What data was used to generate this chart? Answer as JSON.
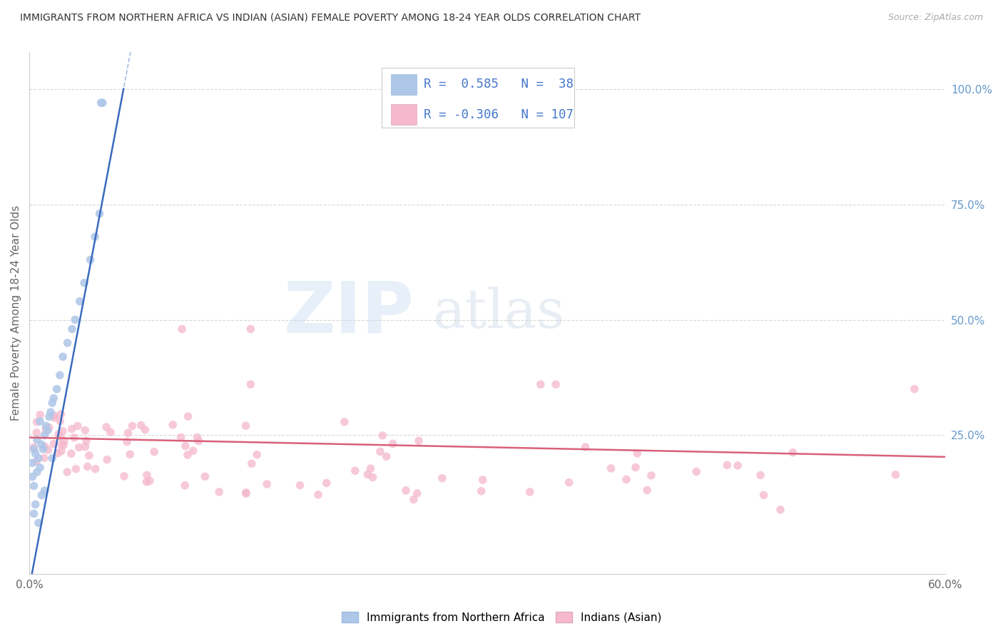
{
  "title": "IMMIGRANTS FROM NORTHERN AFRICA VS INDIAN (ASIAN) FEMALE POVERTY AMONG 18-24 YEAR OLDS CORRELATION CHART",
  "source": "Source: ZipAtlas.com",
  "ylabel": "Female Poverty Among 18-24 Year Olds",
  "xlim": [
    0.0,
    0.6
  ],
  "ylim": [
    -0.05,
    1.08
  ],
  "yticks_right": [
    0.25,
    0.5,
    0.75,
    1.0
  ],
  "ytick_labels_right": [
    "25.0%",
    "50.0%",
    "75.0%",
    "100.0%"
  ],
  "xtick_labels": [
    "0.0%",
    "",
    "",
    "",
    "",
    "",
    "60.0%"
  ],
  "blue_color": "#aec6e8",
  "pink_color": "#f5b8cc",
  "blue_line_color": "#3a6bbf",
  "pink_line_color": "#d9607a",
  "blue_r": 0.585,
  "blue_n": 38,
  "pink_r": -0.306,
  "pink_n": 107,
  "legend_label_blue": "Immigrants from Northern Africa",
  "legend_label_pink": "Indians (Asian)",
  "watermark_zip": "ZIP",
  "watermark_atlas": "atlas",
  "background_color": "#ffffff",
  "grid_color": "#d8d8d8",
  "right_tick_color": "#6699cc",
  "legend_text_color": "#4477cc",
  "blue_line_slope": 17.5,
  "blue_line_intercept": -0.08,
  "pink_line_slope": -0.07,
  "pink_line_intercept": 0.245
}
